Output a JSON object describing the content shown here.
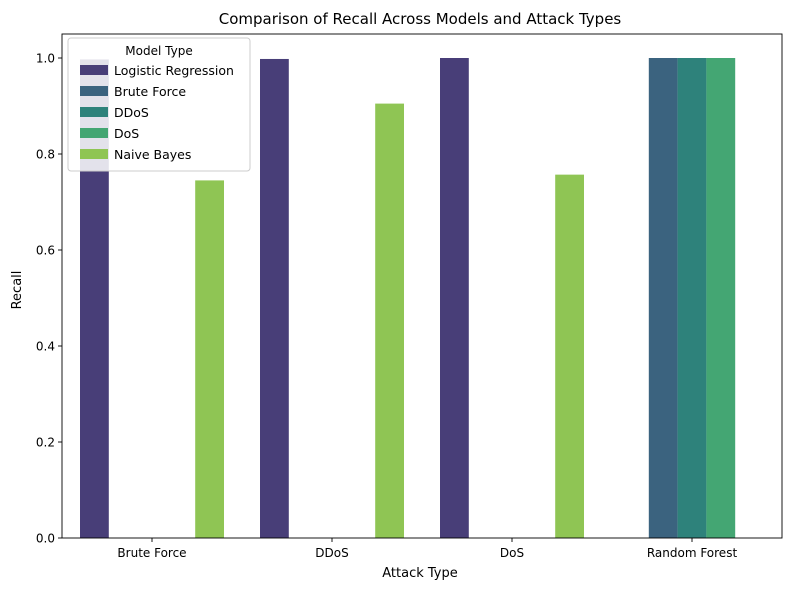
{
  "chart_data": {
    "type": "bar",
    "title": "Comparison of Recall Across Models and Attack Types",
    "xlabel": "Attack Type",
    "ylabel": "Recall",
    "ylim": [
      0,
      1.05
    ],
    "yticks": [
      "0.0",
      "0.2",
      "0.4",
      "0.6",
      "0.8",
      "1.0"
    ],
    "categories": [
      "Brute Force",
      "DDoS",
      "DoS",
      "Random Forest"
    ],
    "legend": {
      "title": "Model Type",
      "placement": "top-left"
    },
    "series": [
      {
        "name": "Logistic Regression",
        "color": "#483e78",
        "values": [
          0.997,
          0.998,
          1.0,
          null
        ]
      },
      {
        "name": "Brute Force",
        "color": "#3b637f",
        "values": [
          null,
          null,
          null,
          1.0
        ]
      },
      {
        "name": "DDoS",
        "color": "#2e827b",
        "values": [
          null,
          null,
          null,
          1.0
        ]
      },
      {
        "name": "DoS",
        "color": "#44a673",
        "values": [
          null,
          null,
          null,
          1.0
        ]
      },
      {
        "name": "Naive Bayes",
        "color": "#8fc554",
        "values": [
          0.745,
          0.905,
          0.757,
          null
        ]
      }
    ],
    "grid": false
  }
}
